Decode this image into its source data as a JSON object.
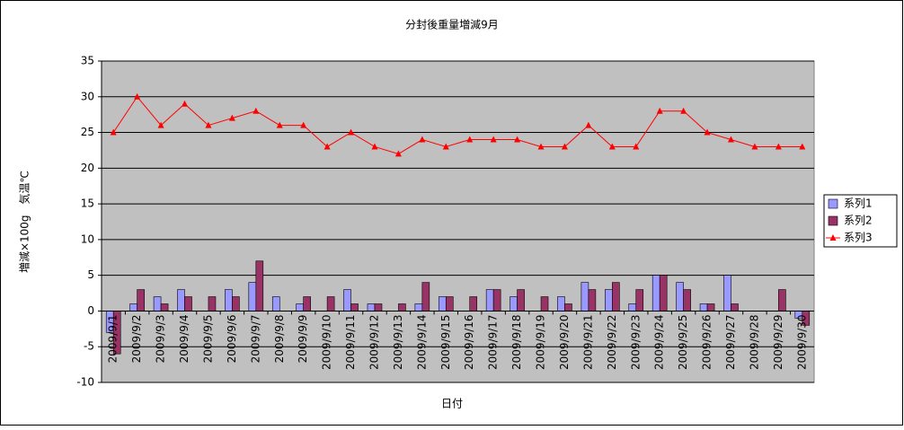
{
  "chart_data": {
    "type": "bar_line",
    "title": "分封後重量増減9月",
    "x_label": "日付",
    "y_label": "増減×100g　気温℃",
    "categories": [
      "2009/9/1",
      "2009/9/2",
      "2009/9/3",
      "2009/9/4",
      "2009/9/5",
      "2009/9/6",
      "2009/9/7",
      "2009/9/8",
      "2009/9/9",
      "2009/9/10",
      "2009/9/11",
      "2009/9/12",
      "2009/9/13",
      "2009/9/14",
      "2009/9/15",
      "2009/9/16",
      "2009/9/17",
      "2009/9/18",
      "2009/9/19",
      "2009/9/20",
      "2009/9/21",
      "2009/9/22",
      "2009/9/23",
      "2009/9/24",
      "2009/9/25",
      "2009/9/26",
      "2009/9/27",
      "2009/9/28",
      "2009/9/29",
      "2009/9/30"
    ],
    "series": [
      {
        "name": "系列1",
        "color": "#9999ff",
        "kind": "bar",
        "values": [
          -3,
          1,
          2,
          3,
          0,
          3,
          4,
          2,
          1,
          0,
          3,
          1,
          0,
          1,
          2,
          0,
          3,
          2,
          0,
          2,
          4,
          3,
          1,
          5,
          4,
          1,
          5,
          0,
          0,
          -1
        ]
      },
      {
        "name": "系列2",
        "color": "#993366",
        "kind": "bar",
        "values": [
          -6,
          3,
          1,
          2,
          2,
          2,
          7,
          0,
          2,
          2,
          1,
          1,
          1,
          4,
          2,
          2,
          3,
          3,
          2,
          1,
          3,
          4,
          3,
          5,
          3,
          1,
          1,
          0,
          3,
          -2
        ]
      },
      {
        "name": "系列3",
        "color": "#ff0000",
        "kind": "line",
        "values": [
          25,
          30,
          26,
          29,
          26,
          27,
          28,
          26,
          26,
          23,
          25,
          23,
          22,
          24,
          23,
          24,
          24,
          24,
          23,
          23,
          26,
          23,
          23,
          28,
          28,
          25,
          24,
          23,
          23,
          23
        ]
      }
    ],
    "ylim": [
      -10,
      35
    ],
    "yticks": [
      -10,
      -5,
      0,
      5,
      10,
      15,
      20,
      25,
      30,
      35
    ],
    "grid": true,
    "legend": "right",
    "plot_color": "#c0c0c0"
  }
}
